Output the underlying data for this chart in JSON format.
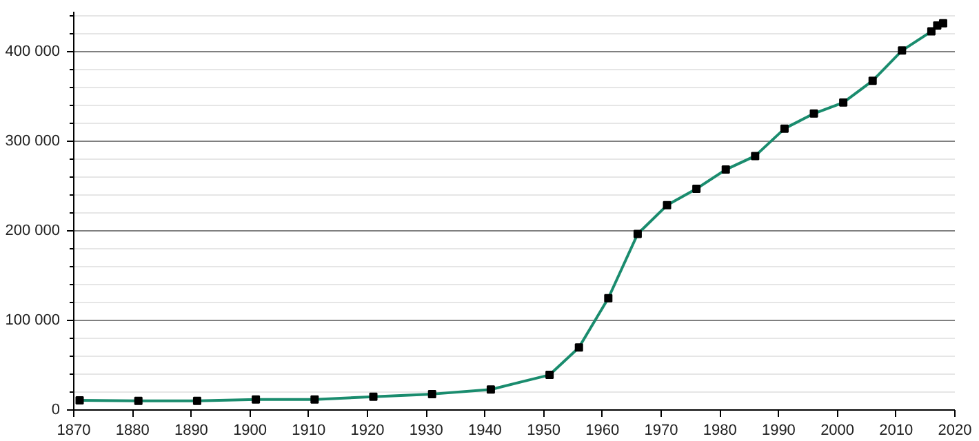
{
  "chart_data": {
    "type": "line",
    "x": [
      1871,
      1881,
      1891,
      1901,
      1911,
      1921,
      1931,
      1941,
      1951,
      1956,
      1961,
      1966,
      1971,
      1976,
      1981,
      1986,
      1991,
      1996,
      2001,
      2006,
      2011,
      2016,
      2017,
      2018
    ],
    "series": [
      {
        "color": "#1a8c6e",
        "values": [
          10700,
          10200,
          10200,
          11700,
          11700,
          14800,
          17800,
          22900,
          39200,
          69800,
          124900,
          196700,
          228800,
          247100,
          268600,
          283800,
          314400,
          331200,
          343500,
          367900,
          401600,
          423000,
          429600,
          432100
        ]
      }
    ],
    "xlim": [
      1870,
      2020
    ],
    "xticks": [
      1870,
      1880,
      1890,
      1900,
      1910,
      1920,
      1930,
      1940,
      1950,
      1960,
      1970,
      1980,
      1990,
      2000,
      2010,
      2020
    ],
    "ylim": [
      0,
      445000
    ],
    "yticks": [
      0,
      {
        "value": 20000,
        "label": null
      },
      {
        "value": 40000,
        "label": null
      },
      {
        "value": 60000,
        "label": null
      },
      {
        "value": 80000,
        "label": null
      },
      {
        "value": 100000,
        "label": "100 000"
      },
      {
        "value": 120000,
        "label": null
      },
      {
        "value": 140000,
        "label": null
      },
      {
        "value": 160000,
        "label": null
      },
      {
        "value": 180000,
        "label": null
      },
      {
        "value": 200000,
        "label": "200 000"
      },
      {
        "value": 220000,
        "label": null
      },
      {
        "value": 240000,
        "label": null
      },
      {
        "value": 260000,
        "label": null
      },
      {
        "value": 280000,
        "label": null
      },
      {
        "value": 300000,
        "label": "300 000"
      },
      {
        "value": 320000,
        "label": null
      },
      {
        "value": 340000,
        "label": null
      },
      {
        "value": 360000,
        "label": null
      },
      {
        "value": 380000,
        "label": null
      },
      {
        "value": 400000,
        "label": "400 000"
      },
      {
        "value": 420000,
        "label": null
      },
      {
        "value": 440000,
        "label": null
      }
    ],
    "grid": "y",
    "marker": "square",
    "line_style": "solid"
  }
}
